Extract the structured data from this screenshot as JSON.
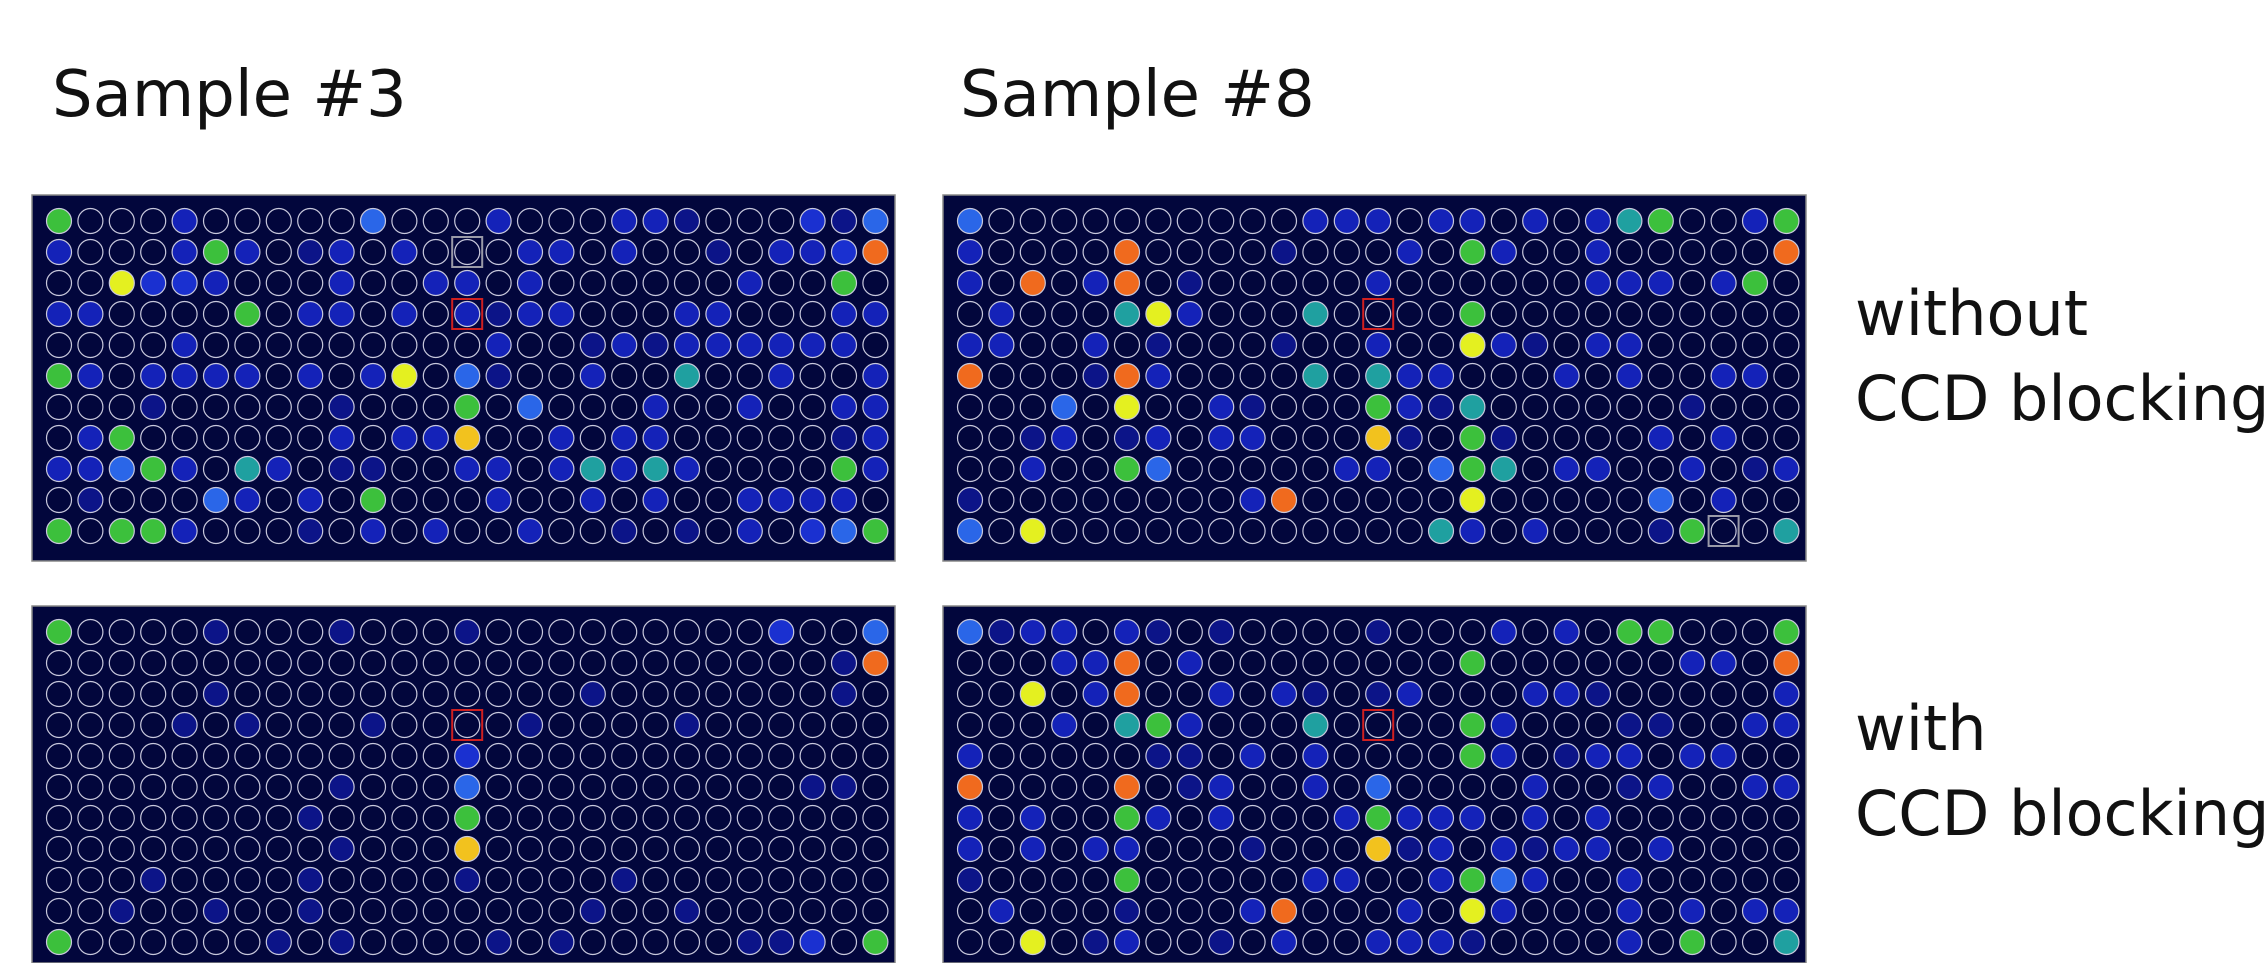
{
  "headers": [
    "Sample #3",
    "Sample #8"
  ],
  "row_labels": [
    [
      "without",
      "CCD blocking"
    ],
    [
      "with",
      "CCD blocking"
    ]
  ]
}
